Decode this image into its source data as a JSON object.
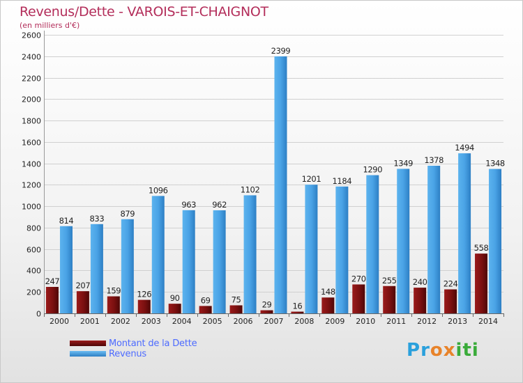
{
  "title": "Revenus/Dette - VAROIS-ET-CHAIGNOT",
  "subtitle": "(en milliers d'€)",
  "logo": {
    "letters": [
      "P",
      "r",
      "o",
      "x",
      "i",
      "t",
      "i"
    ],
    "colors": [
      "#2aa0dc",
      "#2aa0dc",
      "#e8832a",
      "#e8832a",
      "#3aab3a",
      "#3aab3a",
      "#3aab3a"
    ]
  },
  "legend": [
    {
      "name": "Montant de la Dette",
      "color": "#7a1010"
    },
    {
      "name": "Revenus",
      "color": "#4aa3e6"
    }
  ],
  "chart_data": {
    "type": "bar",
    "categories": [
      "2000",
      "2001",
      "2002",
      "2003",
      "2004",
      "2005",
      "2006",
      "2007",
      "2008",
      "2009",
      "2010",
      "2011",
      "2012",
      "2013",
      "2014"
    ],
    "series": [
      {
        "name": "Montant de la Dette",
        "color": "#7a1010",
        "values": [
          247,
          207,
          159,
          126,
          90,
          69,
          75,
          29,
          16,
          148,
          270,
          255,
          240,
          224,
          558
        ]
      },
      {
        "name": "Revenus",
        "color": "#4aa3e6",
        "values": [
          814,
          833,
          879,
          1096,
          963,
          962,
          1102,
          2399,
          1201,
          1184,
          1290,
          1349,
          1378,
          1494,
          1348
        ]
      }
    ],
    "yticks": [
      "0",
      "200",
      "400",
      "600",
      "800",
      "1000",
      "1200",
      "1400",
      "1600",
      "1800",
      "2000",
      "2200",
      "2400",
      "2600"
    ],
    "ylim": [
      0,
      2600
    ],
    "grid": true,
    "legend_position": "bottom-left"
  }
}
